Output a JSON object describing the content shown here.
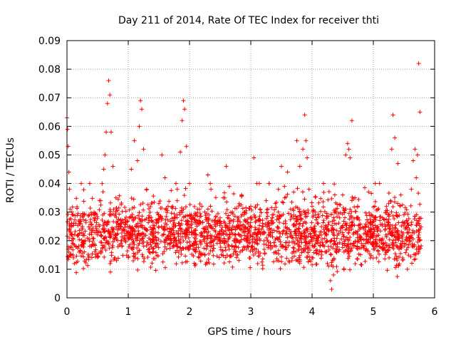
{
  "chart_data": {
    "type": "scatter",
    "title": "Day 211 of 2014, Rate Of TEC Index for receiver thti",
    "xlabel": "GPS time / hours",
    "ylabel": "ROTI / TECUs",
    "xlim": [
      0,
      6
    ],
    "ylim": [
      0,
      0.09
    ],
    "xticks": [
      0,
      1,
      2,
      3,
      4,
      5,
      6
    ],
    "xtick_labels": [
      "0",
      "1",
      "2",
      "3",
      "4",
      "5",
      "6"
    ],
    "yticks": [
      0,
      0.01,
      0.02,
      0.03,
      0.04,
      0.05,
      0.06,
      0.07,
      0.08,
      0.09
    ],
    "ytick_labels": [
      "0",
      "0.01",
      "0.02",
      "0.03",
      "0.04",
      "0.05",
      "0.06",
      "0.07",
      "0.08",
      "0.09"
    ],
    "grid": true,
    "marker": "+",
    "series": [
      {
        "name": "ROTI",
        "color": "#ff0000",
        "x": [
          0.0,
          0.01,
          0.02,
          0.03,
          0.04,
          0.05,
          0.06,
          0.08,
          0.1,
          0.12,
          0.15,
          0.18,
          0.2,
          0.25,
          0.3,
          0.35,
          0.4,
          0.45,
          0.5,
          0.55,
          0.6,
          0.62,
          0.64,
          0.66,
          0.68,
          0.7,
          0.72,
          0.75,
          0.8,
          0.85,
          0.9,
          0.95,
          1.0,
          1.05,
          1.1,
          1.15,
          1.18,
          1.2,
          1.22,
          1.25,
          1.3,
          1.35,
          1.4,
          1.45,
          1.5,
          1.55,
          1.6,
          1.65,
          1.7,
          1.75,
          1.8,
          1.85,
          1.88,
          1.9,
          1.92,
          1.95,
          2.0,
          2.05,
          2.1,
          2.15,
          2.2,
          2.25,
          2.3,
          2.35,
          2.4,
          2.45,
          2.5,
          2.55,
          2.6,
          2.65,
          2.7,
          2.75,
          2.8,
          2.85,
          2.9,
          2.95,
          3.0,
          3.05,
          3.1,
          3.15,
          3.2,
          3.25,
          3.3,
          3.35,
          3.4,
          3.45,
          3.5,
          3.55,
          3.6,
          3.65,
          3.7,
          3.75,
          3.8,
          3.85,
          3.88,
          3.9,
          3.92,
          3.95,
          4.0,
          4.05,
          4.1,
          4.15,
          4.2,
          4.25,
          4.3,
          4.32,
          4.35,
          4.4,
          4.45,
          4.5,
          4.55,
          4.58,
          4.6,
          4.62,
          4.65,
          4.7,
          4.75,
          4.8,
          4.85,
          4.9,
          4.95,
          5.0,
          5.05,
          5.1,
          5.15,
          5.2,
          5.25,
          5.3,
          5.32,
          5.35,
          5.4,
          5.45,
          5.5,
          5.55,
          5.6,
          5.62,
          5.65,
          5.68,
          5.7,
          5.72,
          5.74,
          5.76
        ],
        "y": [
          0.063,
          0.059,
          0.053,
          0.044,
          0.038,
          0.031,
          0.025,
          0.02,
          0.015,
          0.012,
          0.018,
          0.022,
          0.016,
          0.025,
          0.02,
          0.014,
          0.018,
          0.027,
          0.022,
          0.034,
          0.045,
          0.05,
          0.058,
          0.068,
          0.076,
          0.071,
          0.058,
          0.046,
          0.035,
          0.025,
          0.018,
          0.02,
          0.023,
          0.045,
          0.055,
          0.048,
          0.06,
          0.069,
          0.066,
          0.052,
          0.038,
          0.028,
          0.022,
          0.018,
          0.033,
          0.05,
          0.042,
          0.032,
          0.024,
          0.028,
          0.038,
          0.051,
          0.062,
          0.069,
          0.066,
          0.053,
          0.04,
          0.028,
          0.022,
          0.026,
          0.032,
          0.03,
          0.043,
          0.038,
          0.027,
          0.021,
          0.028,
          0.035,
          0.046,
          0.039,
          0.03,
          0.022,
          0.028,
          0.036,
          0.03,
          0.024,
          0.032,
          0.049,
          0.04,
          0.031,
          0.025,
          0.034,
          0.04,
          0.029,
          0.033,
          0.038,
          0.046,
          0.039,
          0.044,
          0.031,
          0.037,
          0.055,
          0.046,
          0.052,
          0.064,
          0.055,
          0.049,
          0.038,
          0.032,
          0.03,
          0.026,
          0.022,
          0.018,
          0.012,
          0.006,
          0.003,
          0.008,
          0.016,
          0.028,
          0.036,
          0.05,
          0.054,
          0.052,
          0.049,
          0.062,
          0.035,
          0.028,
          0.021,
          0.018,
          0.022,
          0.026,
          0.017,
          0.014,
          0.02,
          0.028,
          0.025,
          0.033,
          0.052,
          0.064,
          0.056,
          0.047,
          0.036,
          0.029,
          0.024,
          0.02,
          0.038,
          0.048,
          0.052,
          0.042,
          0.05,
          0.082,
          0.065
        ]
      }
    ],
    "background_points": [
      0.005,
      0.04
    ]
  }
}
